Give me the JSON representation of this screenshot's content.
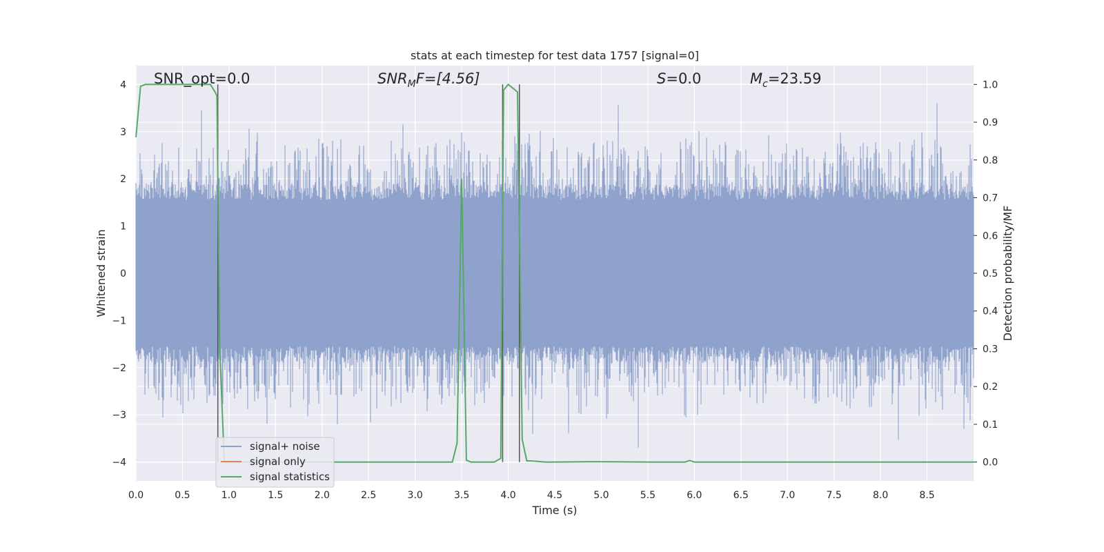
{
  "chart_data": {
    "type": "line",
    "title": "stats at each timestep for test data 1757 [signal=0]",
    "xlabel": "Time (s)",
    "ylabel_left": "Whitened strain",
    "ylabel_right": "Detection probability/MF",
    "xlim": [
      0.0,
      9.0
    ],
    "ylim_left": [
      -4.4,
      4.4
    ],
    "ylim_right": [
      -0.05,
      1.05
    ],
    "x_ticks": [
      "0.0",
      "0.5",
      "1.0",
      "1.5",
      "2.0",
      "2.5",
      "3.0",
      "3.5",
      "4.0",
      "4.5",
      "5.0",
      "5.5",
      "6.0",
      "6.5",
      "7.0",
      "7.5",
      "8.0",
      "8.5"
    ],
    "y_ticks_left": [
      "4",
      "3",
      "2",
      "1",
      "0",
      "−1",
      "−2",
      "−3",
      "−4"
    ],
    "y_ticks_right": [
      "1.0",
      "0.9",
      "0.8",
      "0.7",
      "0.6",
      "0.5",
      "0.4",
      "0.3",
      "0.2",
      "0.1",
      "0.0"
    ],
    "grid": true,
    "legend_position": "lower-left",
    "annotations": {
      "snr_opt": "SNR_opt=0.0",
      "snr_mf_pre": "SNR",
      "snr_mf_sub": "M",
      "snr_mf_post": "F=[4.56]",
      "s_pre": "S",
      "s_post": "=0.0",
      "mc_pre": "M",
      "mc_sub": "c",
      "mc_post": "=23.59"
    },
    "vertical_markers_time": [
      0.88,
      3.94,
      4.12
    ],
    "series": [
      {
        "name": "signal+ noise",
        "color": "#8ea2cc",
        "description_values": "whitened noise, amplitude typically within ±2.5, peaks to ~±4"
      },
      {
        "name": "signal only",
        "color": "#dd8452",
        "x": [
          0.0,
          9.0
        ],
        "y": [
          0.0,
          0.0
        ]
      },
      {
        "name": "signal statistics",
        "color": "#55a868",
        "axis": "right",
        "x": [
          0.0,
          0.05,
          0.1,
          0.2,
          0.3,
          0.4,
          0.5,
          0.6,
          0.7,
          0.8,
          0.85,
          0.87,
          0.9,
          0.95,
          1.0,
          3.4,
          3.45,
          3.5,
          3.55,
          3.6,
          3.7,
          3.85,
          3.92,
          3.95,
          4.0,
          4.05,
          4.1,
          4.15,
          4.2,
          4.25,
          4.4,
          4.5,
          4.9,
          5.5,
          5.9,
          5.95,
          6.0,
          9.0
        ],
        "y": [
          0.86,
          0.995,
          1.0,
          1.0,
          1.0,
          1.0,
          1.0,
          1.0,
          1.0,
          1.0,
          0.98,
          0.97,
          0.3,
          0.0,
          0.0,
          0.0,
          0.05,
          0.75,
          0.005,
          0.0,
          0.0,
          0.0,
          0.01,
          0.985,
          1.0,
          0.99,
          0.98,
          0.06,
          0.003,
          0.003,
          0.0,
          0.0,
          0.001,
          0.0,
          0.0,
          0.004,
          0.0,
          0.0
        ]
      }
    ]
  },
  "legend": {
    "items": [
      {
        "label": "signal+ noise",
        "color": "#8ea2cc"
      },
      {
        "label": "signal only",
        "color": "#dd8452"
      },
      {
        "label": "signal statistics",
        "color": "#55a868"
      }
    ]
  },
  "colors": {
    "plot_background": "#eaeaf2",
    "grid": "#ffffff",
    "marker_line": "#555555"
  }
}
